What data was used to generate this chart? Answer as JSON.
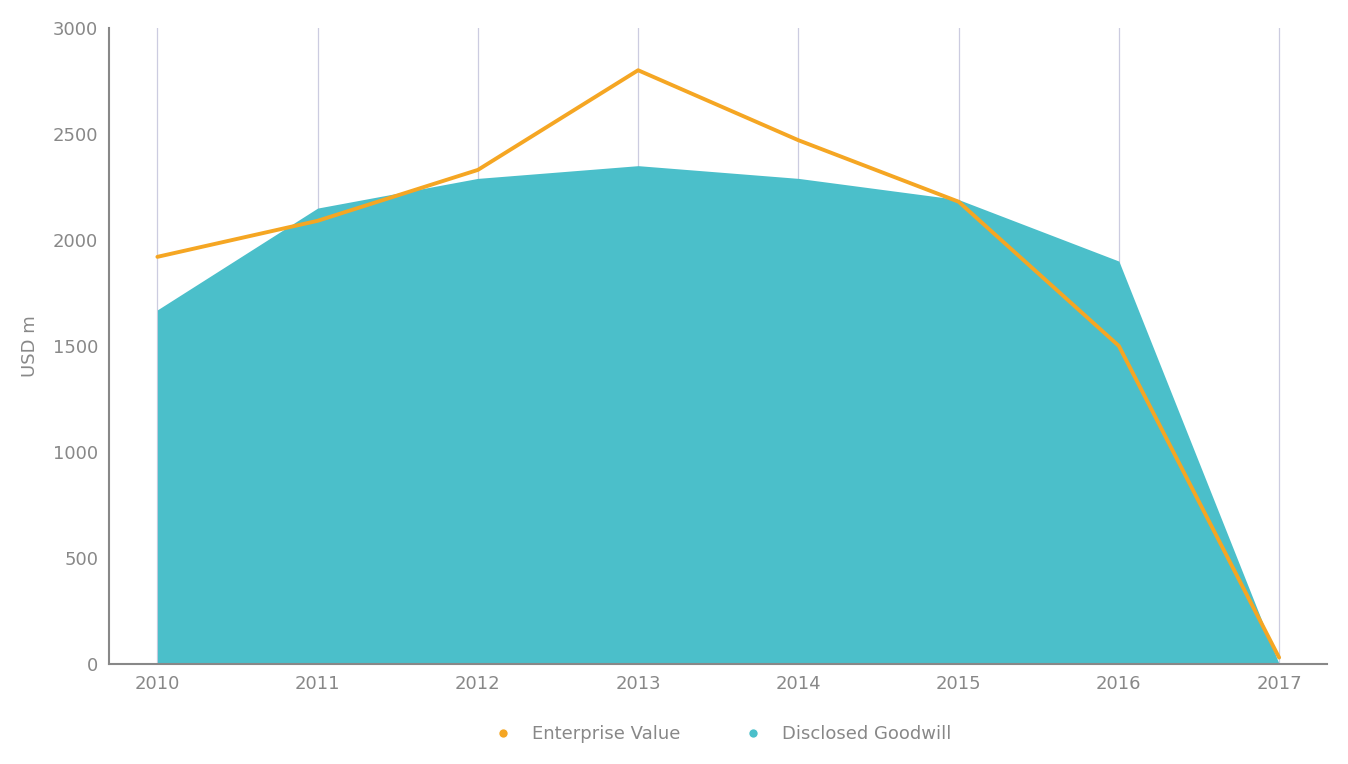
{
  "years": [
    2010,
    2011,
    2012,
    2013,
    2014,
    2015,
    2016,
    2017
  ],
  "enterprise_value": [
    1920,
    2090,
    2330,
    2800,
    2470,
    2180,
    1500,
    30
  ],
  "disclosed_goodwill": [
    1670,
    2150,
    2290,
    2350,
    2290,
    2190,
    1900,
    0
  ],
  "ev_color": "#F5A623",
  "goodwill_color": "#4BBFCA",
  "goodwill_fill_alpha": 1.0,
  "background_color": "#FFFFFF",
  "plot_bg_color": "#FFFFFF",
  "ylabel": "USD m",
  "ylim": [
    0,
    3000
  ],
  "xlim_min": 2009.7,
  "xlim_max": 2017.3,
  "yticks": [
    0,
    500,
    1000,
    1500,
    2000,
    2500,
    3000
  ],
  "xticks": [
    2010,
    2011,
    2012,
    2013,
    2014,
    2015,
    2016,
    2017
  ],
  "vline_color": "#AAAACC",
  "vline_alpha": 0.6,
  "vline_lw": 0.9,
  "legend_ev_label": "Enterprise Value",
  "legend_gw_label": "Disclosed Goodwill",
  "legend_marker_size": 7,
  "line_lw": 2.8,
  "spine_color": "#888888",
  "tick_color": "#888888",
  "label_fontsize": 13,
  "tick_fontsize": 13
}
